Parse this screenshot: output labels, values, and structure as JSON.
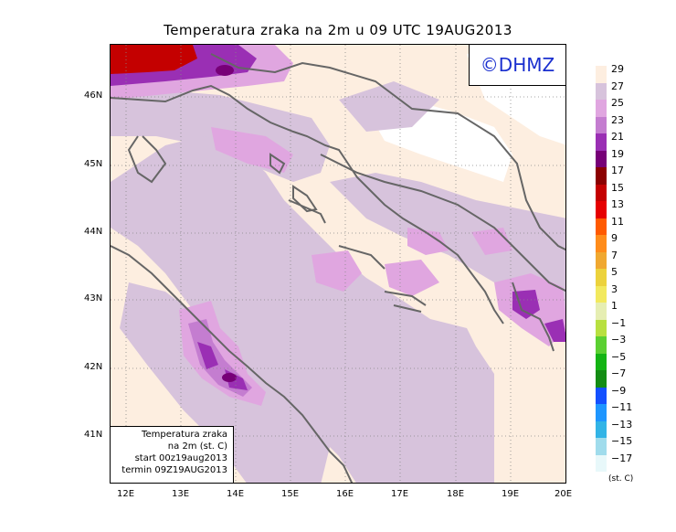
{
  "title": "Temperatura zraka na 2m u 09 UTC 19AUG2013",
  "logo": "©DHMZ",
  "info_box": {
    "line1": "Temperatura zraka",
    "line2": "na 2m (st. C)",
    "line3": "start 00z19aug2013",
    "line4": "termin 09Z19AUG2013"
  },
  "axes": {
    "lat_labels": [
      "46N",
      "45N",
      "44N",
      "43N",
      "42N",
      "41N"
    ],
    "lon_labels": [
      "12E",
      "13E",
      "14E",
      "15E",
      "16E",
      "17E",
      "18E",
      "19E",
      "20E"
    ]
  },
  "legend": {
    "labels": [
      "29",
      "27",
      "25",
      "23",
      "21",
      "19",
      "17",
      "15",
      "13",
      "11",
      "9",
      "7",
      "5",
      "3",
      "1",
      "−1",
      "−3",
      "−5",
      "−7",
      "−9",
      "−11",
      "−13",
      "−15",
      "−17"
    ],
    "unit": "(st. C)",
    "colors": [
      "#fdeee0",
      "#d7c3dc",
      "#e0a6e0",
      "#c47dd0",
      "#9a2fb4",
      "#770077",
      "#8b0000",
      "#c40000",
      "#e60000",
      "#ff5a00",
      "#ff8c1a",
      "#f0a830",
      "#ecd23c",
      "#f2e95e",
      "#e6eeb2",
      "#b8e040",
      "#5bd032",
      "#14b414",
      "#148c14",
      "#1450ff",
      "#1e96ff",
      "#32b4e6",
      "#a0dcec",
      "#e8f8fa"
    ]
  },
  "map_colors": {
    "land_cool": "#fdeee0",
    "land_white": "#ffffff",
    "sea": "#d7c3dc",
    "warm1": "#e0a6e0",
    "warm2": "#c47dd0",
    "warm3": "#9a2fb4",
    "hot": "#770077",
    "hottest": "#c40000",
    "coast": "#666666",
    "grid": "#888888"
  }
}
